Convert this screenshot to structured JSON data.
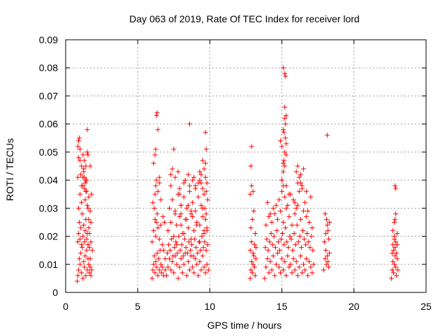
{
  "chart_data": {
    "type": "scatter",
    "title": "Day 063 of 2019, Rate Of TEC Index for receiver lord",
    "xlabel": "GPS time / hours",
    "ylabel": "ROTI / TECUs",
    "xlim": [
      0,
      25
    ],
    "ylim": [
      0,
      0.09
    ],
    "x_ticks": [
      0,
      5,
      10,
      15,
      20,
      25
    ],
    "y_ticks": [
      0,
      0.01,
      0.02,
      0.03,
      0.04,
      0.05,
      0.06,
      0.07,
      0.08,
      0.09
    ],
    "x_tick_labels": [
      "0",
      "5",
      "10",
      "15",
      "20",
      "25"
    ],
    "y_tick_labels": [
      "0",
      "0.01",
      "0.02",
      "0.03",
      "0.04",
      "0.05",
      "0.06",
      "0.07",
      "0.08",
      "0.09"
    ],
    "grid": true,
    "marker": "+",
    "color": "#ff0000",
    "series": [
      {
        "x": [
          0.8,
          0.85,
          0.9,
          0.95,
          1.0,
          1.05,
          1.1,
          1.15,
          1.2,
          1.25,
          1.3,
          1.35,
          1.4,
          1.45,
          1.5,
          1.55,
          1.6,
          1.65,
          1.7,
          1.75,
          1.8,
          0.85,
          0.9,
          0.95,
          1.0,
          1.05,
          1.1,
          1.15,
          1.2,
          1.25,
          1.3,
          1.35,
          1.4,
          1.45,
          1.5,
          1.55,
          1.6,
          1.65,
          1.7,
          0.9,
          1.0,
          1.1,
          1.2,
          1.3,
          1.4,
          1.5,
          1.6,
          1.7,
          1.75,
          0.85,
          0.9,
          1.0,
          1.1,
          1.2,
          1.25,
          1.3,
          1.35,
          1.4,
          1.45,
          1.5,
          1.55,
          1.7,
          1.8,
          0.85,
          0.9,
          0.95,
          1.0,
          1.05,
          1.1,
          1.2,
          1.25,
          1.3,
          1.35,
          1.4,
          1.45,
          1.5,
          1.55,
          1.6,
          1.65,
          1.75,
          1.85,
          6.0,
          6.05,
          6.1,
          6.15,
          6.2,
          6.25,
          6.3,
          6.35,
          6.4,
          6.45,
          6.5,
          6.55,
          6.6,
          6.65,
          6.7,
          6.8,
          6.9,
          6.0,
          6.1,
          6.2,
          6.25,
          6.3,
          6.35,
          6.4,
          6.5,
          6.6,
          6.7,
          6.8,
          6.9,
          6.05,
          6.15,
          6.2,
          6.25,
          6.3,
          6.4,
          6.5,
          6.6,
          6.75,
          6.85,
          6.1,
          6.2,
          6.25,
          6.3,
          6.35,
          6.4,
          6.5,
          7.0,
          7.1,
          7.2,
          7.3,
          7.4,
          7.5,
          7.6,
          7.7,
          7.8,
          7.9,
          8.0,
          8.1,
          8.2,
          8.3,
          8.4,
          8.5,
          8.6,
          8.7,
          8.8,
          8.9,
          9.0,
          9.1,
          9.2,
          9.3,
          9.4,
          9.5,
          9.6,
          9.7,
          9.8,
          9.9,
          7.05,
          7.15,
          7.25,
          7.35,
          7.45,
          7.55,
          7.65,
          7.75,
          7.85,
          7.95,
          8.05,
          8.15,
          8.25,
          8.35,
          8.45,
          8.55,
          8.65,
          8.75,
          8.85,
          8.95,
          9.05,
          9.15,
          9.25,
          9.35,
          9.45,
          9.55,
          9.65,
          9.75,
          9.85,
          7.1,
          7.3,
          7.5,
          7.7,
          7.9,
          8.1,
          8.3,
          8.5,
          8.7,
          8.9,
          9.1,
          9.3,
          9.5,
          9.6,
          9.7,
          9.8,
          7.2,
          7.4,
          7.6,
          7.8,
          8.0,
          8.2,
          8.4,
          8.6,
          8.8,
          9.0,
          9.2,
          9.4,
          9.6,
          9.65,
          9.75,
          9.85,
          7.3,
          7.6,
          7.9,
          8.2,
          8.5,
          8.8,
          9.0,
          9.3,
          9.5,
          9.7,
          9.8,
          7.4,
          7.8,
          8.3,
          8.6,
          8.9,
          9.2,
          9.4,
          9.6,
          9.7,
          7.5,
          7.9,
          8.0,
          8.5,
          8.7,
          9.0,
          9.3,
          9.5,
          9.7,
          9.75,
          7.6,
          8.0,
          8.4,
          8.8,
          9.1,
          9.5,
          9.8,
          7.7,
          8.2,
          8.7,
          9.3,
          9.6,
          7.3,
          8.0,
          8.6,
          9.4,
          9.75,
          12.8,
          12.85,
          12.9,
          12.95,
          13.0,
          13.05,
          13.1,
          13.15,
          13.2,
          12.8,
          12.9,
          13.0,
          13.1,
          13.2,
          12.85,
          12.95,
          13.05,
          13.15,
          12.8,
          12.9,
          13.0,
          12.85,
          12.9,
          13.8,
          13.9,
          14.0,
          14.1,
          14.2,
          14.3,
          14.4,
          14.5,
          14.6,
          14.7,
          14.8,
          14.9,
          15.0,
          15.1,
          15.2,
          15.3,
          15.4,
          15.5,
          15.6,
          15.7,
          15.8,
          15.9,
          16.0,
          16.1,
          16.2,
          16.3,
          16.4,
          16.5,
          16.6,
          16.7,
          16.8,
          16.9,
          17.0,
          17.1,
          17.2,
          13.85,
          13.95,
          14.05,
          14.15,
          14.25,
          14.35,
          14.45,
          14.55,
          14.65,
          14.75,
          14.85,
          14.95,
          15.05,
          15.15,
          15.25,
          15.35,
          15.45,
          15.55,
          15.65,
          15.75,
          15.85,
          15.95,
          16.05,
          16.15,
          16.25,
          16.35,
          16.45,
          16.55,
          16.65,
          16.75,
          16.85,
          16.95,
          17.05,
          17.15,
          13.9,
          14.1,
          14.3,
          14.5,
          14.7,
          14.9,
          15.1,
          15.3,
          15.5,
          15.7,
          15.9,
          16.1,
          16.3,
          16.5,
          16.7,
          16.9,
          17.1,
          14.0,
          14.4,
          14.8,
          15.0,
          15.2,
          15.4,
          15.6,
          15.8,
          16.0,
          16.2,
          16.4,
          16.6,
          16.8,
          17.0,
          14.2,
          14.6,
          15.0,
          15.1,
          15.2,
          15.3,
          15.5,
          15.9,
          16.1,
          16.3,
          16.5,
          16.7,
          14.9,
          15.0,
          15.1,
          15.15,
          15.2,
          15.25,
          15.3,
          15.1,
          15.2,
          15.25,
          15.3,
          15.15,
          15.0,
          15.1,
          15.2,
          15.3,
          16.0,
          16.1,
          16.2,
          16.3,
          16.4,
          15.2,
          15.1,
          15.25,
          17.9,
          18.0,
          18.05,
          18.1,
          18.15,
          18.2,
          18.25,
          18.3,
          17.95,
          18.05,
          18.15,
          18.25,
          18.0,
          18.1,
          18.2,
          18.3,
          18.15,
          22.6,
          22.65,
          22.7,
          22.75,
          22.8,
          22.85,
          22.9,
          22.95,
          23.0,
          23.05,
          22.65,
          22.7,
          22.75,
          22.8,
          22.85,
          22.9,
          22.95,
          23.0,
          22.7,
          22.8,
          22.85,
          22.9,
          23.0,
          22.85,
          22.8,
          22.9
        ],
        "y": [
          0.004,
          0.006,
          0.008,
          0.012,
          0.01,
          0.014,
          0.007,
          0.016,
          0.005,
          0.011,
          0.009,
          0.013,
          0.006,
          0.015,
          0.008,
          0.012,
          0.01,
          0.007,
          0.009,
          0.006,
          0.008,
          0.018,
          0.021,
          0.025,
          0.019,
          0.023,
          0.017,
          0.028,
          0.02,
          0.024,
          0.018,
          0.022,
          0.026,
          0.019,
          0.021,
          0.017,
          0.023,
          0.016,
          0.012,
          0.03,
          0.035,
          0.032,
          0.038,
          0.041,
          0.036,
          0.031,
          0.034,
          0.029,
          0.025,
          0.041,
          0.048,
          0.051,
          0.045,
          0.049,
          0.043,
          0.047,
          0.039,
          0.045,
          0.04,
          0.058,
          0.049,
          0.045,
          0.035,
          0.052,
          0.054,
          0.055,
          0.047,
          0.042,
          0.038,
          0.041,
          0.044,
          0.037,
          0.033,
          0.04,
          0.036,
          0.05,
          0.03,
          0.026,
          0.021,
          0.018,
          0.015,
          0.005,
          0.008,
          0.01,
          0.013,
          0.007,
          0.011,
          0.009,
          0.014,
          0.006,
          0.012,
          0.008,
          0.015,
          0.01,
          0.007,
          0.009,
          0.006,
          0.008,
          0.018,
          0.022,
          0.026,
          0.02,
          0.025,
          0.028,
          0.023,
          0.019,
          0.024,
          0.017,
          0.015,
          0.012,
          0.032,
          0.03,
          0.035,
          0.038,
          0.04,
          0.036,
          0.039,
          0.033,
          0.027,
          0.025,
          0.046,
          0.049,
          0.051,
          0.063,
          0.064,
          0.058,
          0.041,
          0.006,
          0.009,
          0.012,
          0.008,
          0.011,
          0.007,
          0.013,
          0.01,
          0.005,
          0.009,
          0.012,
          0.007,
          0.01,
          0.014,
          0.006,
          0.011,
          0.008,
          0.013,
          0.009,
          0.007,
          0.012,
          0.01,
          0.006,
          0.011,
          0.008,
          0.013,
          0.009,
          0.007,
          0.01,
          0.008,
          0.014,
          0.017,
          0.015,
          0.019,
          0.013,
          0.016,
          0.018,
          0.014,
          0.02,
          0.015,
          0.017,
          0.013,
          0.019,
          0.016,
          0.014,
          0.018,
          0.015,
          0.017,
          0.013,
          0.019,
          0.016,
          0.014,
          0.018,
          0.015,
          0.02,
          0.016,
          0.018,
          0.015,
          0.017,
          0.022,
          0.025,
          0.02,
          0.024,
          0.027,
          0.021,
          0.026,
          0.023,
          0.028,
          0.022,
          0.025,
          0.024,
          0.027,
          0.022,
          0.026,
          0.023,
          0.03,
          0.033,
          0.029,
          0.035,
          0.031,
          0.034,
          0.03,
          0.036,
          0.032,
          0.029,
          0.034,
          0.031,
          0.035,
          0.03,
          0.028,
          0.033,
          0.038,
          0.041,
          0.037,
          0.039,
          0.042,
          0.04,
          0.038,
          0.043,
          0.037,
          0.041,
          0.039,
          0.044,
          0.043,
          0.04,
          0.038,
          0.041,
          0.039,
          0.042,
          0.044,
          0.046,
          0.051,
          0.035,
          0.024,
          0.031,
          0.029,
          0.037,
          0.04,
          0.047,
          0.057,
          0.051,
          0.028,
          0.031,
          0.026,
          0.027,
          0.024,
          0.03,
          0.022,
          0.017,
          0.021,
          0.019,
          0.018,
          0.021,
          0.042,
          0.028,
          0.06,
          0.039,
          0.036,
          0.005,
          0.008,
          0.011,
          0.007,
          0.01,
          0.013,
          0.009,
          0.006,
          0.012,
          0.015,
          0.018,
          0.014,
          0.017,
          0.016,
          0.023,
          0.026,
          0.029,
          0.021,
          0.035,
          0.038,
          0.036,
          0.045,
          0.052,
          0.005,
          0.009,
          0.012,
          0.007,
          0.011,
          0.008,
          0.013,
          0.006,
          0.01,
          0.014,
          0.009,
          0.007,
          0.012,
          0.008,
          0.011,
          0.006,
          0.013,
          0.009,
          0.01,
          0.007,
          0.012,
          0.008,
          0.011,
          0.006,
          0.009,
          0.013,
          0.007,
          0.01,
          0.008,
          0.012,
          0.006,
          0.011,
          0.009,
          0.007,
          0.01,
          0.016,
          0.019,
          0.015,
          0.018,
          0.021,
          0.017,
          0.02,
          0.016,
          0.022,
          0.018,
          0.015,
          0.019,
          0.021,
          0.017,
          0.023,
          0.018,
          0.016,
          0.02,
          0.019,
          0.015,
          0.021,
          0.017,
          0.024,
          0.018,
          0.02,
          0.016,
          0.022,
          0.019,
          0.017,
          0.021,
          0.018,
          0.016,
          0.02,
          0.015,
          0.024,
          0.027,
          0.025,
          0.028,
          0.026,
          0.029,
          0.025,
          0.03,
          0.027,
          0.024,
          0.028,
          0.031,
          0.026,
          0.029,
          0.027,
          0.025,
          0.023,
          0.032,
          0.03,
          0.033,
          0.036,
          0.034,
          0.031,
          0.035,
          0.033,
          0.03,
          0.036,
          0.038,
          0.032,
          0.029,
          0.034,
          0.028,
          0.031,
          0.04,
          0.043,
          0.045,
          0.038,
          0.035,
          0.032,
          0.039,
          0.042,
          0.044,
          0.036,
          0.054,
          0.052,
          0.058,
          0.057,
          0.05,
          0.055,
          0.053,
          0.046,
          0.062,
          0.06,
          0.049,
          0.047,
          0.04,
          0.038,
          0.066,
          0.063,
          0.043,
          0.045,
          0.041,
          0.039,
          0.037,
          0.078,
          0.08,
          0.077,
          0.008,
          0.012,
          0.015,
          0.01,
          0.013,
          0.011,
          0.009,
          0.014,
          0.018,
          0.021,
          0.024,
          0.019,
          0.028,
          0.026,
          0.022,
          0.025,
          0.056,
          0.005,
          0.008,
          0.011,
          0.007,
          0.01,
          0.013,
          0.009,
          0.006,
          0.012,
          0.008,
          0.014,
          0.017,
          0.015,
          0.019,
          0.016,
          0.018,
          0.014,
          0.017,
          0.022,
          0.025,
          0.026,
          0.028,
          0.021,
          0.038,
          0.02,
          0.037
        ]
      }
    ]
  }
}
